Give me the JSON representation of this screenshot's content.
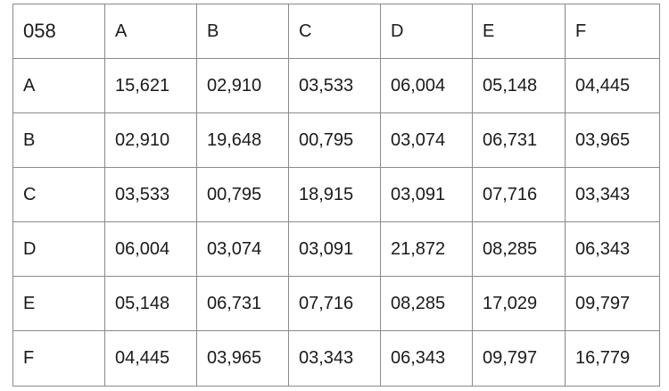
{
  "table": {
    "corner_label": "058",
    "column_headers": [
      "A",
      "B",
      "C",
      "D",
      "E",
      "F"
    ],
    "rows": [
      {
        "label": "A",
        "values": [
          "15,621",
          "02,910",
          "03,533",
          "06,004",
          "05,148",
          "04,445"
        ]
      },
      {
        "label": "B",
        "values": [
          "02,910",
          "19,648",
          "00,795",
          "03,074",
          "06,731",
          "03,965"
        ]
      },
      {
        "label": "C",
        "values": [
          "03,533",
          "00,795",
          "18,915",
          "03,091",
          "07,716",
          "03,343"
        ]
      },
      {
        "label": "D",
        "values": [
          "06,004",
          "03,074",
          "03,091",
          "21,872",
          "08,285",
          "06,343"
        ]
      },
      {
        "label": "E",
        "values": [
          "05,148",
          "06,731",
          "07,716",
          "08,285",
          "17,029",
          "09,797"
        ]
      },
      {
        "label": "F",
        "values": [
          "04,445",
          "03,965",
          "03,343",
          "06,343",
          "09,797",
          "16,779"
        ]
      }
    ]
  }
}
